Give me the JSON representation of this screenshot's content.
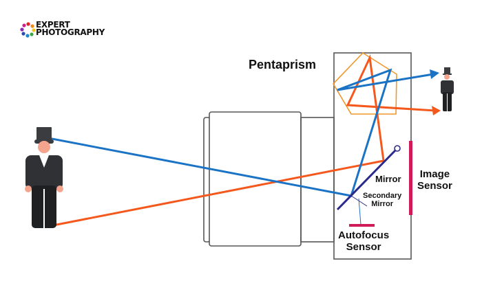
{
  "logo": {
    "line1": "EXPERT",
    "line2": "PHOTOGRAPHY"
  },
  "labels": {
    "pentaprism": "Pentaprism",
    "mirror": "Mirror",
    "secondary_mirror_1": "Secondary",
    "secondary_mirror_2": "Mirror",
    "image_sensor_1": "Image",
    "image_sensor_2": "Sensor",
    "autofocus_1": "Autofocus",
    "autofocus_2": "Sensor"
  },
  "colors": {
    "top_ray": "#1a73c4",
    "bottom_ray": "#f4581c",
    "prism": "#f0962a",
    "mirror": "#2a2a8c",
    "sensor": "#d01a5a",
    "outline": "#555555"
  }
}
